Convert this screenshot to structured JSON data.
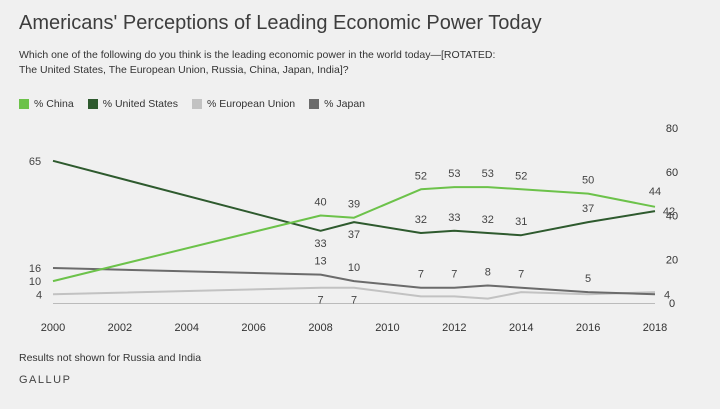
{
  "title": "Americans' Perceptions of Leading Economic Power Today",
  "subtitle_line1": "Which one of the following do you think is the leading economic power in the world today—[ROTATED:",
  "subtitle_line2": "The United States, The European Union, Russia, China, Japan, India]?",
  "footnote": "Results not shown for Russia and India",
  "source": "GALLUP",
  "colors": {
    "china": "#6cc24a",
    "united_states": "#2e5a2e",
    "european_union": "#c2c2c2",
    "japan": "#6b6b6b"
  },
  "chart_data": {
    "type": "line",
    "title": "Americans' Perceptions of Leading Economic Power Today",
    "xlabel": "",
    "ylabel": "",
    "xlim": [
      2000,
      2018
    ],
    "ylim": [
      0,
      80
    ],
    "x_ticks": [
      2000,
      2002,
      2004,
      2006,
      2008,
      2010,
      2012,
      2014,
      2016,
      2018
    ],
    "y_ticks": [
      0,
      20,
      40,
      60,
      80
    ],
    "grid": false,
    "legend_position": "top-left",
    "series": [
      {
        "name": "% China",
        "color": "#6cc24a",
        "x": [
          2000,
          2008,
          2009,
          2011,
          2012,
          2013,
          2014,
          2016,
          2018
        ],
        "y": [
          10,
          40,
          39,
          52,
          53,
          53,
          52,
          50,
          44
        ],
        "labels": [
          "10",
          "40",
          "39",
          "52",
          "53",
          "53",
          "52",
          "50",
          "44"
        ]
      },
      {
        "name": "% United States",
        "color": "#2e5a2e",
        "x": [
          2000,
          2008,
          2009,
          2011,
          2012,
          2013,
          2014,
          2016,
          2018
        ],
        "y": [
          65,
          33,
          37,
          32,
          33,
          32,
          31,
          37,
          42
        ],
        "labels": [
          "65",
          "33",
          "37",
          "32",
          "33",
          "32",
          "31",
          "37",
          "42"
        ]
      },
      {
        "name": "% European Union",
        "color": "#c2c2c2",
        "x": [
          2000,
          2008,
          2009,
          2011,
          2012,
          2013,
          2014,
          2016,
          2018
        ],
        "y": [
          4,
          7,
          7,
          3,
          3,
          2,
          5,
          4,
          5
        ],
        "labels": [
          "4",
          "7",
          "7",
          "",
          "",
          "",
          "",
          "",
          ""
        ]
      },
      {
        "name": "% Japan",
        "color": "#6b6b6b",
        "x": [
          2000,
          2008,
          2009,
          2011,
          2012,
          2013,
          2014,
          2016,
          2018
        ],
        "y": [
          16,
          13,
          10,
          7,
          7,
          8,
          7,
          5,
          4
        ],
        "labels": [
          "16",
          "13",
          "10",
          "7",
          "7",
          "8",
          "7",
          "5",
          "4"
        ]
      }
    ]
  }
}
